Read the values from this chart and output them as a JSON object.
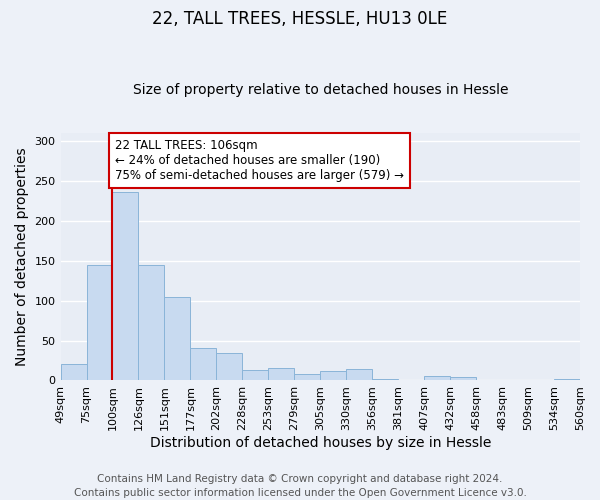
{
  "title": "22, TALL TREES, HESSLE, HU13 0LE",
  "subtitle": "Size of property relative to detached houses in Hessle",
  "xlabel": "Distribution of detached houses by size in Hessle",
  "ylabel": "Number of detached properties",
  "footer_line1": "Contains HM Land Registry data © Crown copyright and database right 2024.",
  "footer_line2": "Contains public sector information licensed under the Open Government Licence v3.0.",
  "bin_labels": [
    "49sqm",
    "75sqm",
    "100sqm",
    "126sqm",
    "151sqm",
    "177sqm",
    "202sqm",
    "228sqm",
    "253sqm",
    "279sqm",
    "305sqm",
    "330sqm",
    "356sqm",
    "381sqm",
    "407sqm",
    "432sqm",
    "458sqm",
    "483sqm",
    "509sqm",
    "534sqm",
    "560sqm"
  ],
  "bar_values": [
    20,
    144,
    236,
    144,
    105,
    41,
    34,
    13,
    16,
    8,
    12,
    14,
    2,
    0,
    5,
    4,
    0,
    0,
    0,
    2
  ],
  "bar_color": "#c8daf0",
  "bar_edge_color": "#8ab4d8",
  "annotation_box_text_line1": "22 TALL TREES: 106sqm",
  "annotation_box_text_line2": "← 24% of detached houses are smaller (190)",
  "annotation_box_text_line3": "75% of semi-detached houses are larger (579) →",
  "annotation_box_color": "#ffffff",
  "annotation_box_edge_color": "#cc0000",
  "red_line_color": "#cc0000",
  "ylim": [
    0,
    310
  ],
  "yticks": [
    0,
    50,
    100,
    150,
    200,
    250,
    300
  ],
  "background_color": "#edf1f8",
  "plot_background_color": "#e8edf5",
  "grid_color": "#ffffff",
  "title_fontsize": 12,
  "subtitle_fontsize": 10,
  "axis_label_fontsize": 10,
  "tick_fontsize": 8,
  "annotation_fontsize": 8.5,
  "footer_fontsize": 7.5
}
